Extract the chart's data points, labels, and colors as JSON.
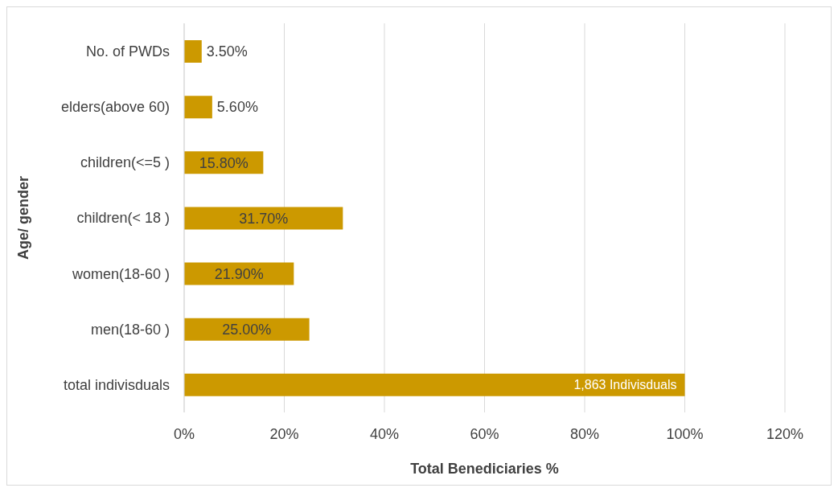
{
  "chart_data": {
    "type": "bar",
    "orientation": "horizontal",
    "xlabel": "Total Benediciaries %",
    "ylabel": "Age/ gender",
    "categories": [
      "No. of PWDs",
      "elders(above 60)",
      "children(<=5 )",
      "children(< 18 )",
      "women(18-60 )",
      "men(18-60 )",
      "total indivisduals"
    ],
    "values": [
      3.5,
      5.6,
      15.8,
      31.7,
      21.9,
      25,
      100
    ],
    "value_labels": [
      "3.50%",
      "5.60%",
      "15.80%",
      "31.70%",
      "21.90%",
      "25.00%",
      null
    ],
    "annotations": [
      {
        "text": "1,863 Indivisduals",
        "x": 100,
        "y": "total indivisduals"
      }
    ],
    "color": "#cc9900",
    "xlim": [
      0,
      120
    ],
    "xticks": [
      {
        "value": 0,
        "label": "0%"
      },
      {
        "value": 20,
        "label": "20%"
      },
      {
        "value": 40,
        "label": "40%"
      },
      {
        "value": 60,
        "label": "60%"
      },
      {
        "value": 80,
        "label": "80%"
      },
      {
        "value": 100,
        "label": "100%"
      },
      {
        "value": 120,
        "label": "120%"
      }
    ],
    "grid": "x",
    "legend": false
  }
}
